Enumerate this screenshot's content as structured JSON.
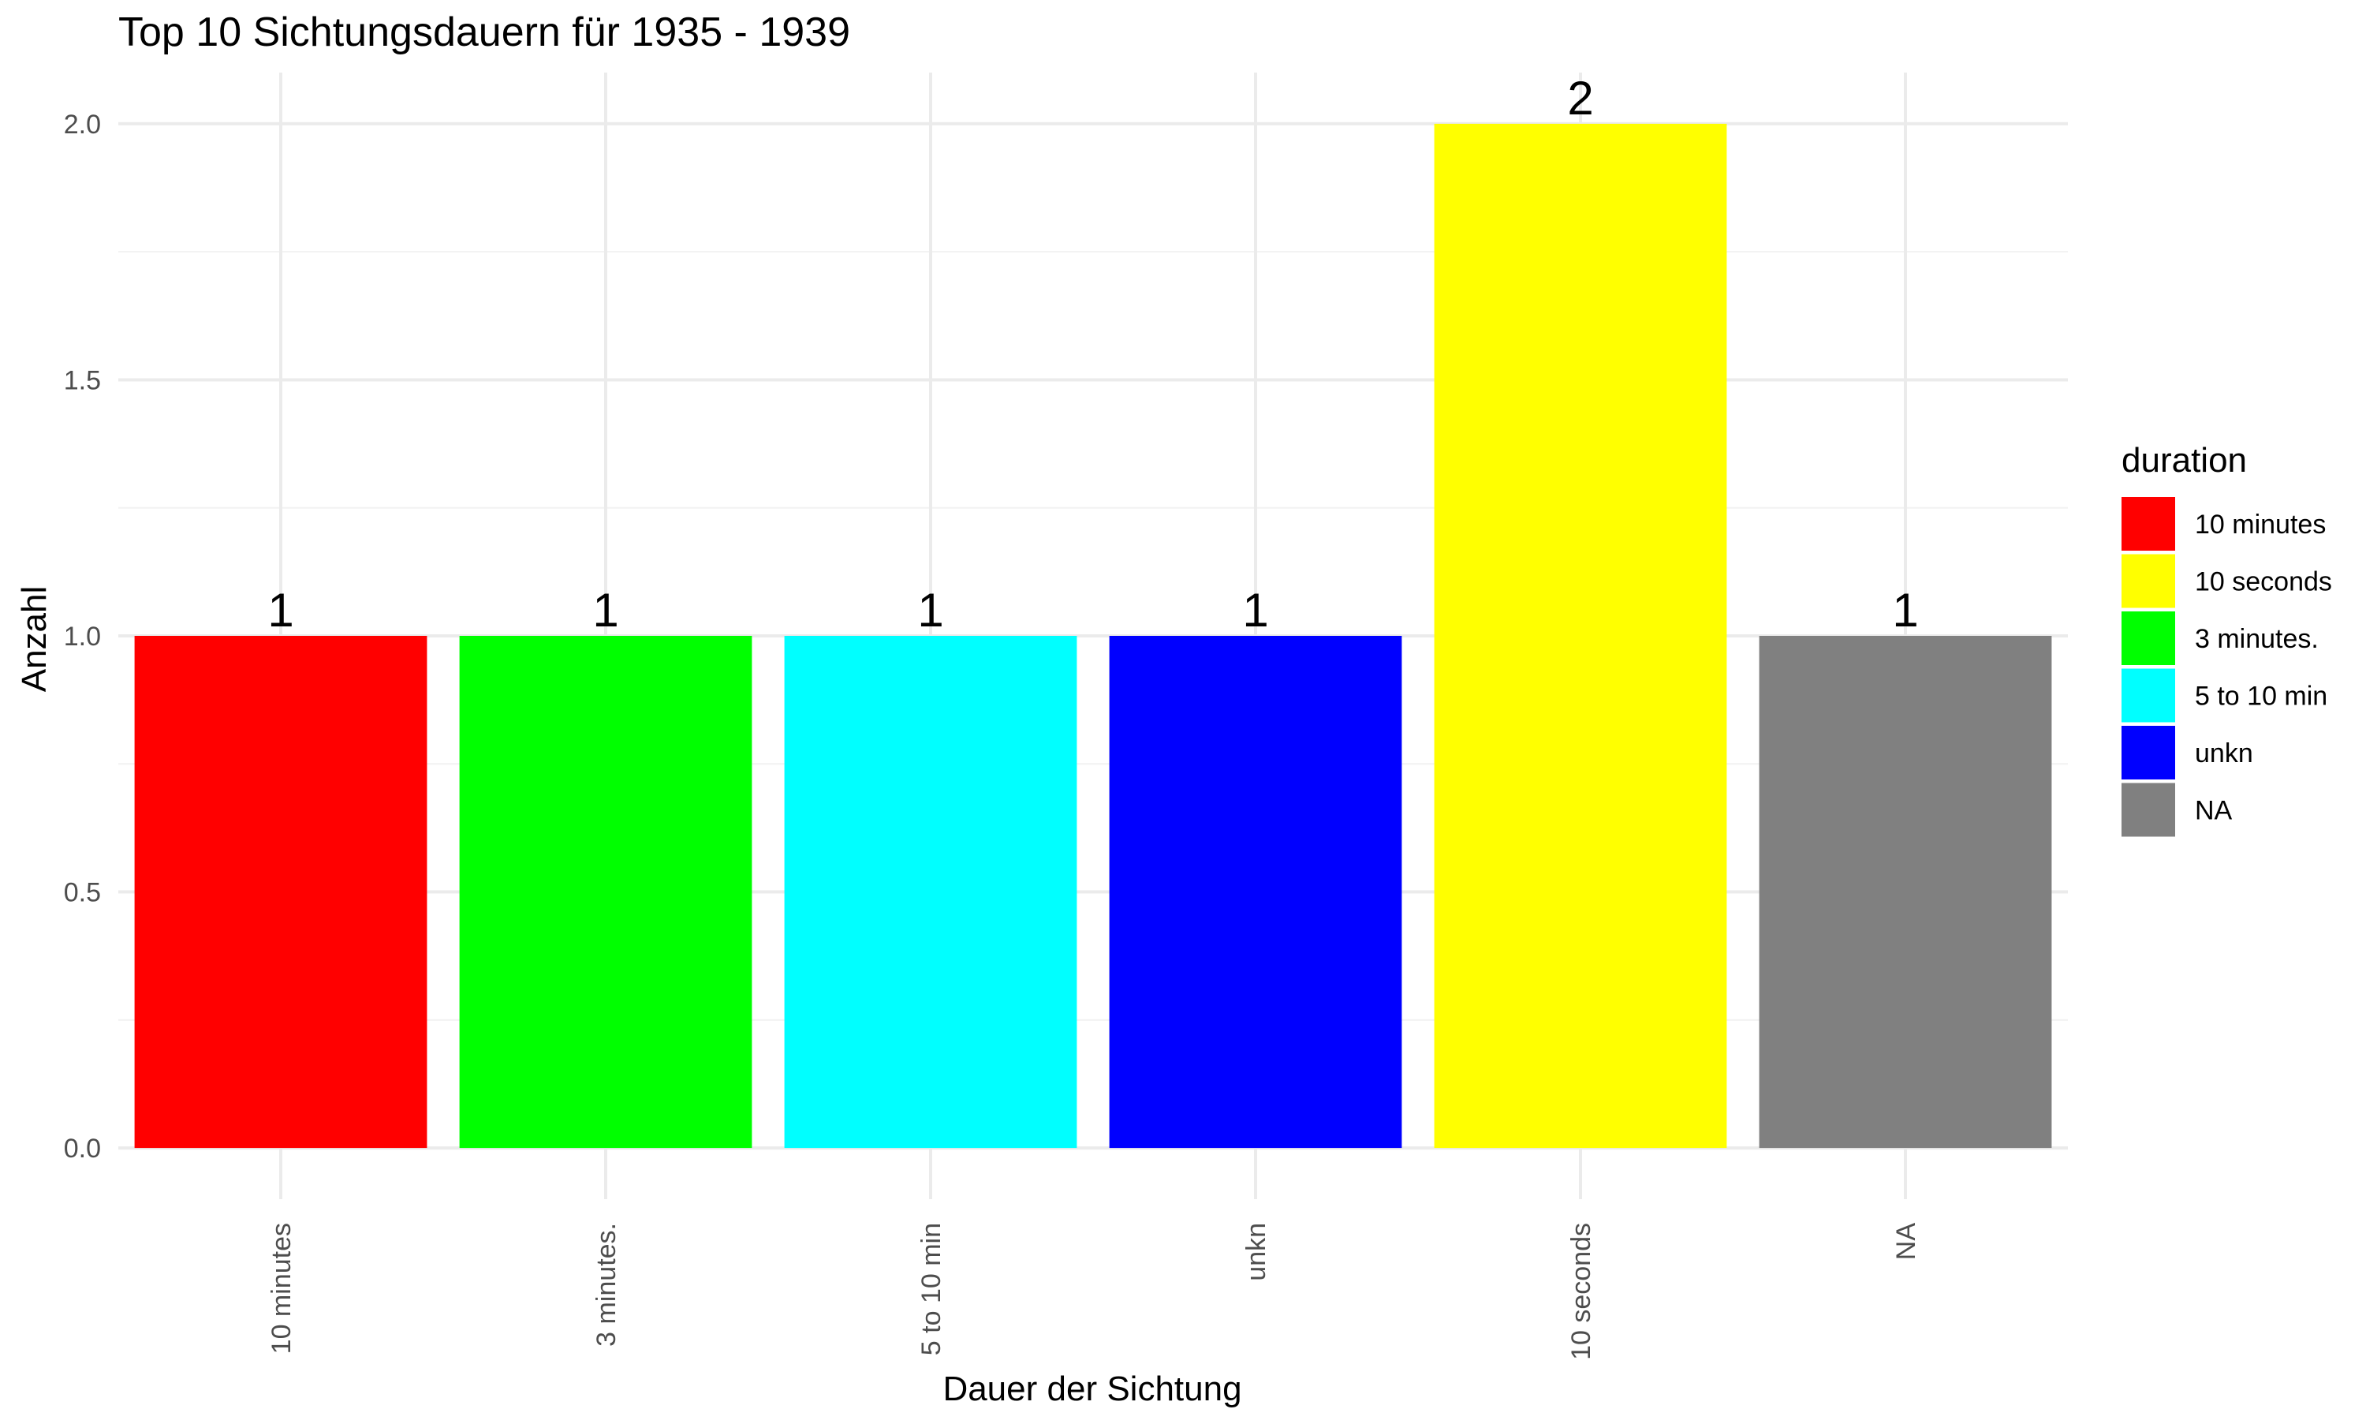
{
  "chart_data": {
    "type": "bar",
    "title": "Top 10 Sichtungsdauern für 1935 - 1939",
    "xlabel": "Dauer der Sichtung",
    "ylabel": "Anzahl",
    "categories": [
      "10 minutes",
      "3 minutes.",
      "5 to 10 min",
      "unkn",
      "10 seconds",
      "NA"
    ],
    "values": [
      1,
      1,
      1,
      1,
      2,
      1
    ],
    "bar_colors": [
      "#ff0000",
      "#00ff00",
      "#00ffff",
      "#0000ff",
      "#ffff00",
      "#808080"
    ],
    "ylim": [
      -0.1,
      2.1
    ],
    "yticks": [
      0,
      0.5,
      1.0,
      1.5,
      2.0
    ],
    "ytick_labels": [
      "0.0",
      "0.5",
      "1.0",
      "1.5",
      "2.0"
    ],
    "data_labels": [
      "1",
      "1",
      "1",
      "1",
      "2",
      "1"
    ],
    "x_tick_rotation": "vertical",
    "grid": true,
    "legend": {
      "title": "duration",
      "placement": "right",
      "items": [
        {
          "label": "10 minutes",
          "color": "#ff0000"
        },
        {
          "label": "10 seconds",
          "color": "#ffff00"
        },
        {
          "label": "3 minutes.",
          "color": "#00ff00"
        },
        {
          "label": "5 to 10 min",
          "color": "#00ffff"
        },
        {
          "label": "unkn",
          "color": "#0000ff"
        },
        {
          "label": "NA",
          "color": "#808080"
        }
      ]
    }
  }
}
